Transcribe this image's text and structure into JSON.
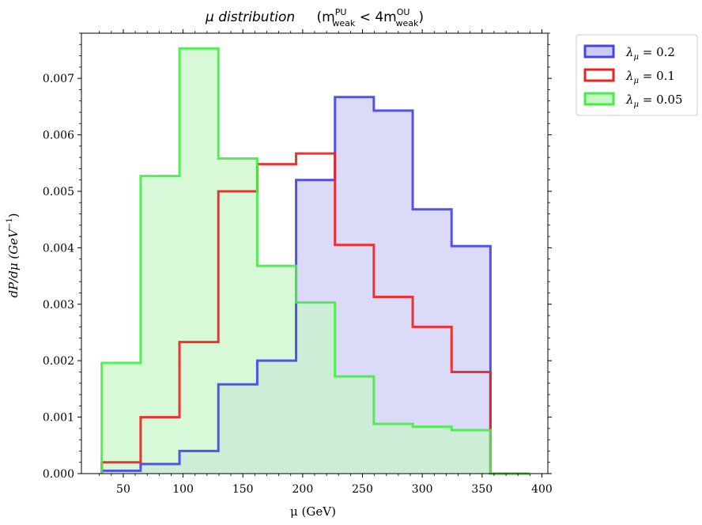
{
  "chart_data": {
    "type": "histogram",
    "title": "μ distribution",
    "title_condition_prefix": "(m",
    "title_condition_sup1": "PU",
    "title_condition_sub1": "weak",
    "title_condition_mid": " < 4m",
    "title_condition_sup2": "OU",
    "title_condition_sub2": "weak",
    "title_condition_suffix": ")",
    "xlabel": "μ (GeV)",
    "ylabel_main": "dP/dμ (GeV",
    "ylabel_sup": "−1",
    "ylabel_close": ")",
    "xlim": [
      15,
      405
    ],
    "ylim": [
      0,
      0.0078
    ],
    "xticks": [
      50,
      100,
      150,
      200,
      250,
      300,
      350,
      400
    ],
    "xtick_labels": [
      "50",
      "100",
      "150",
      "200",
      "250",
      "300",
      "350",
      "400"
    ],
    "yticks": [
      0.0,
      0.001,
      0.002,
      0.003,
      0.004,
      0.005,
      0.006,
      0.007
    ],
    "ytick_labels": [
      "0.000",
      "0.001",
      "0.002",
      "0.003",
      "0.004",
      "0.005",
      "0.006",
      "0.007"
    ],
    "bin_edges": [
      32,
      64.5,
      97,
      129.5,
      162,
      194.5,
      227,
      259.5,
      292,
      324.5,
      357,
      389.5
    ],
    "legend_position": "outside top-right",
    "series": [
      {
        "name": "λμ = 0.2",
        "label_symbol": "λ",
        "label_sub": "μ",
        "label_value": " = 0.2",
        "edge_color": "#4444ee",
        "fill_color": "#ccccf7",
        "values": [
          5e-05,
          0.00017,
          0.0004,
          0.00158,
          0.002,
          0.0052,
          0.00667,
          0.00643,
          0.00468,
          0.00403,
          0.0,
          0.0
        ]
      },
      {
        "name": "λμ = 0.1",
        "label_symbol": "λ",
        "label_sub": "μ",
        "label_value": " = 0.1",
        "edge_color": "#ee2222",
        "fill_color": "none",
        "values": [
          0.0002,
          0.001,
          0.00233,
          0.005,
          0.00548,
          0.00567,
          0.00405,
          0.00313,
          0.0026,
          0.0018,
          0.0,
          0.0
        ]
      },
      {
        "name": "λμ = 0.05",
        "label_symbol": "λ",
        "label_sub": "μ",
        "label_value": " = 0.05",
        "edge_color": "#44ee44",
        "fill_color": "#c7f7c7",
        "values": [
          0.00196,
          0.00527,
          0.00753,
          0.00558,
          0.00368,
          0.00303,
          0.00172,
          0.00088,
          0.00083,
          0.00077,
          0.0,
          0.0
        ]
      }
    ]
  }
}
